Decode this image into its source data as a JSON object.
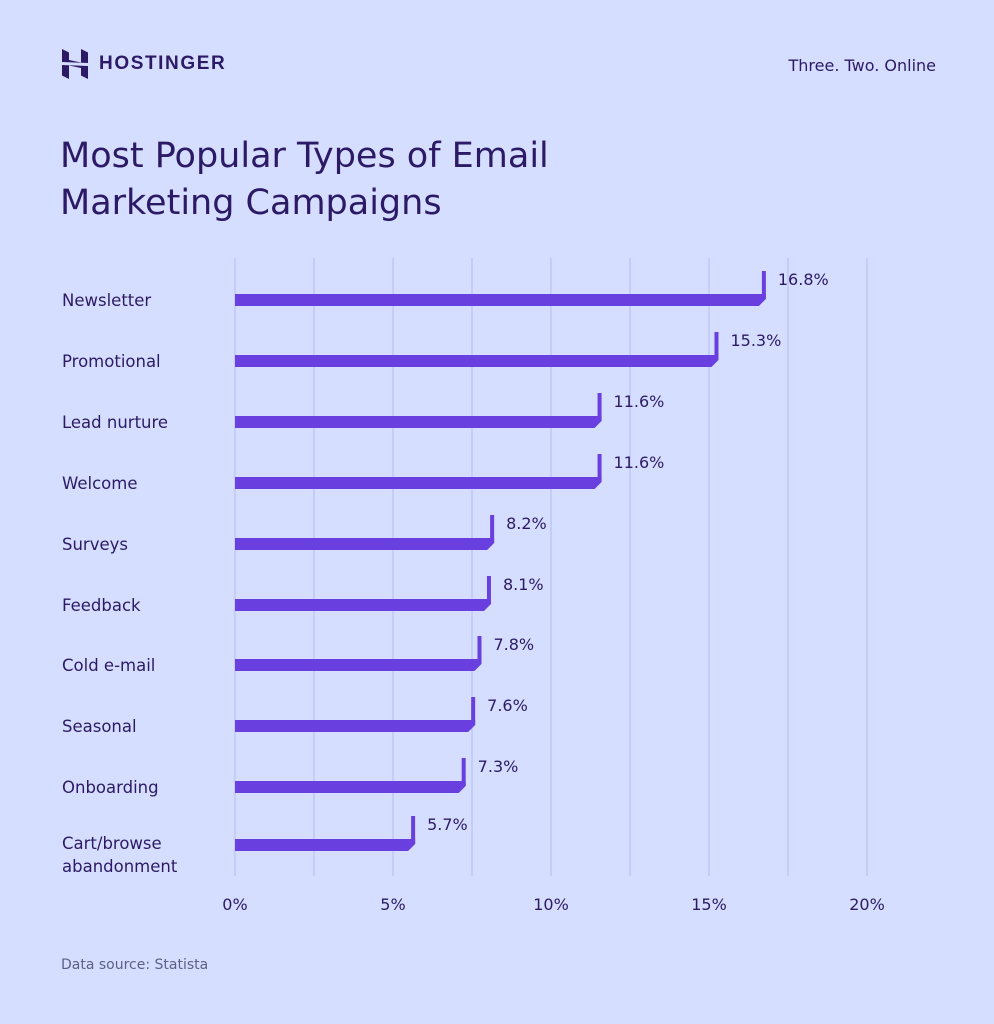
{
  "brand": {
    "name": "HOSTINGER",
    "tagline": "Three. Two. Online"
  },
  "chart_data": {
    "type": "bar",
    "orientation": "horizontal",
    "title": "Most Popular Types of Email Marketing Campaigns",
    "categories": [
      [
        "Newsletter"
      ],
      [
        "Promotional"
      ],
      [
        "Lead nurture"
      ],
      [
        "Welcome"
      ],
      [
        "Surveys"
      ],
      [
        "Feedback"
      ],
      [
        "Cold e-mail"
      ],
      [
        "Seasonal"
      ],
      [
        "Onboarding"
      ],
      [
        "Cart/browse",
        "abandonment"
      ]
    ],
    "values": [
      16.8,
      15.3,
      11.6,
      11.6,
      8.2,
      8.1,
      7.8,
      7.6,
      7.3,
      5.7
    ],
    "value_labels": [
      "16.8%",
      "15.3%",
      "11.6%",
      "11.6%",
      "8.2%",
      "8.1%",
      "7.8%",
      "7.6%",
      "7.3%",
      "5.7%"
    ],
    "xlim": [
      0,
      20
    ],
    "xticks": [
      0,
      5,
      10,
      15,
      20
    ],
    "xtick_labels": [
      "0%",
      "5%",
      "10%",
      "15%",
      "20%"
    ],
    "minor_gridlines": [
      2.5,
      7.5,
      12.5,
      17.5
    ],
    "grid": true,
    "xlabel": "",
    "ylabel": "",
    "colors": {
      "bar": "#6a3fe0",
      "grid": "#b4bcf6",
      "text": "#2c1a66",
      "background": "#d5defe"
    }
  },
  "footer": {
    "source": "Data source: Statista"
  }
}
